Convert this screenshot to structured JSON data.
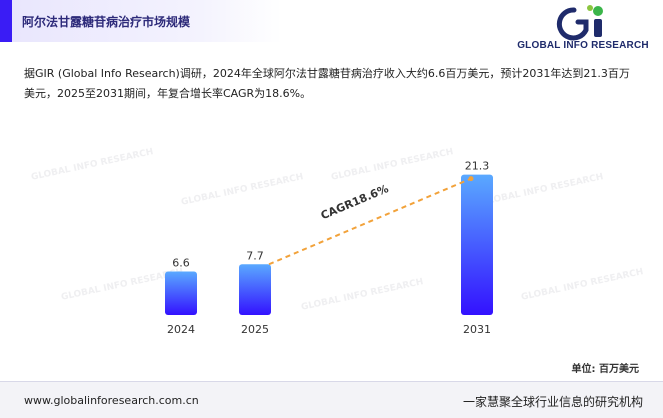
{
  "header": {
    "title": "阿尔法甘露糖苷病治疗市场规模",
    "logo_text": "GLOBAL INFO RESEARCH",
    "logo_colors": {
      "primary": "#1f2b6b",
      "accent": "#3bb54a"
    }
  },
  "summary": "据GIR (Global Info Research)调研，2024年全球阿尔法甘露糖苷病治疗收入大约6.6百万美元，预计2031年达到21.3百万美元，2025至2031期间，年复合增长率CAGR为18.6%。",
  "chart_data": {
    "type": "bar",
    "categories": [
      "2024",
      "2025",
      "2031"
    ],
    "values": [
      6.6,
      7.7,
      21.3
    ],
    "data_labels": [
      "6.6",
      "7.7",
      "21.3"
    ],
    "ylim": [
      0,
      22
    ],
    "grid": false,
    "bar_gradient": [
      "#5aa9ff",
      "#3311ff"
    ],
    "annotation": {
      "text": "CAGR18.6%",
      "from": "2025",
      "to": "2031",
      "line_color": "#f2a23a"
    }
  },
  "unit_label": "单位: 百万美元",
  "footer": {
    "url": "www.globalinforesearch.com.cn",
    "slogan": "一家慧聚全球行业信息的研究机构"
  }
}
